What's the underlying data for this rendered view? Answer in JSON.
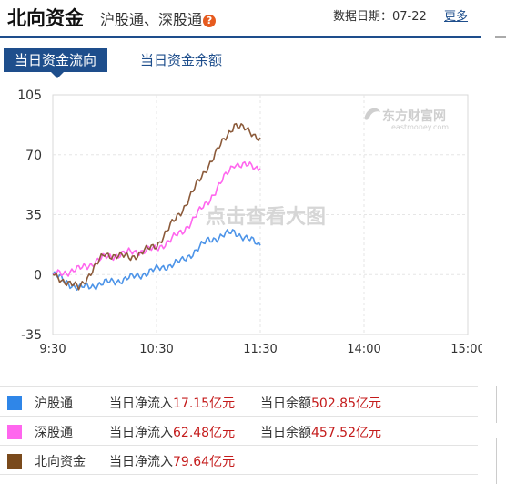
{
  "header": {
    "title": "北向资金",
    "subtitle": "沪股通、深股通",
    "help_icon": "question-icon",
    "date_label": "数据日期：07-22",
    "more_label": "更多"
  },
  "tabs": [
    {
      "label": "当日资金流向",
      "active": true
    },
    {
      "label": "当日资金余额",
      "active": false
    }
  ],
  "chart": {
    "watermark_brand": "东方财富网",
    "watermark_domain": "eastmoney.com",
    "overlay_text": "点击查看大图"
  },
  "chart_data": {
    "type": "line",
    "ylim": [
      -35,
      105
    ],
    "yticks": [
      "105",
      "70",
      "35",
      "0",
      "-35"
    ],
    "xticks": [
      "9:30",
      "10:30",
      "11:30",
      "14:00",
      "15:00"
    ],
    "x_minutes": [
      0,
      15,
      30,
      45,
      60,
      75,
      90,
      105,
      120
    ],
    "series": [
      {
        "name": "沪股通",
        "color": "#4d94e8",
        "values": [
          0,
          -8,
          -5,
          -2,
          3,
          8,
          20,
          25,
          17
        ]
      },
      {
        "name": "深股通",
        "color": "#ff66ee",
        "values": [
          0,
          3,
          10,
          13,
          15,
          25,
          43,
          65,
          62
        ]
      },
      {
        "name": "北向资金",
        "color": "#8b5a3a",
        "values": [
          0,
          -8,
          12,
          10,
          17,
          38,
          64,
          88,
          80
        ]
      }
    ]
  },
  "legend": [
    {
      "name": "沪股通",
      "color": "#2f86e8",
      "flow_label": "当日净流入",
      "flow_value": "17.15亿元",
      "balance_label": "当日余额",
      "balance_value": "502.85亿元"
    },
    {
      "name": "深股通",
      "color": "#ff66ee",
      "flow_label": "当日净流入",
      "flow_value": "62.48亿元",
      "balance_label": "当日余额",
      "balance_value": "457.52亿元"
    },
    {
      "name": "北向资金",
      "color": "#7a4a1c",
      "flow_label": "当日净流入",
      "flow_value": "79.64亿元"
    }
  ]
}
